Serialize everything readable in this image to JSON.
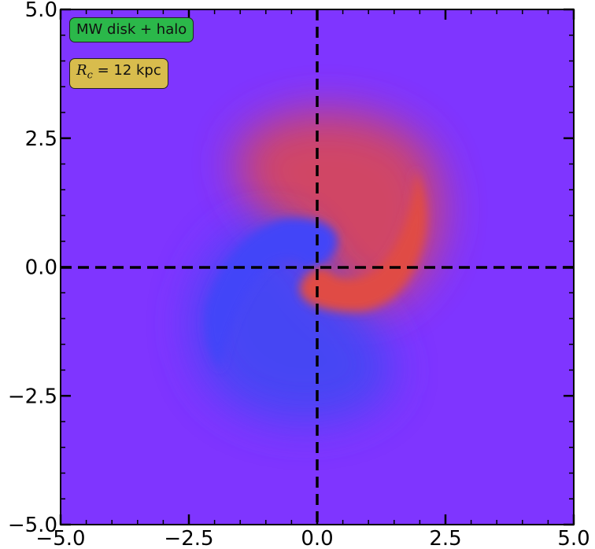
{
  "chart_data": {
    "type": "heatmap",
    "title": "",
    "xlabel": "",
    "ylabel": "",
    "xlim": [
      -5.0,
      5.0
    ],
    "ylim": [
      -5.0,
      5.0
    ],
    "x_ticks": [
      -5.0,
      -2.5,
      0.0,
      2.5,
      5.0
    ],
    "y_ticks": [
      -5.0,
      -2.5,
      0.0,
      2.5,
      5.0
    ],
    "x_tick_labels": [
      "−5.0",
      "−2.5",
      "0.0",
      "2.5",
      "5.0"
    ],
    "y_tick_labels": [
      "−5.0",
      "−2.5",
      "0.0",
      "2.5",
      "5.0"
    ],
    "grid": false,
    "reference_lines": {
      "x": 0.0,
      "y": 0.0,
      "style": "dashed",
      "color": "#000000"
    },
    "pattern": "two-armed spiral, red arm (positive) and blue arm (negative) on purple background, extent about 2.5 units from center",
    "colors": {
      "background": "#7f35ff",
      "positive": "#dc4d45",
      "negative": "#3f45f5"
    },
    "annotations": [
      {
        "label": "MW disk + halo",
        "color": "#2bb84a",
        "placement": "top-left"
      },
      {
        "label": "R_c = 12 kpc",
        "color": "#d8bc4d",
        "placement": "top-left"
      }
    ]
  },
  "badges": {
    "model": "MW disk + halo",
    "rc_symbol": "R",
    "rc_sub": "c",
    "rc_rest": " = 12 kpc"
  }
}
